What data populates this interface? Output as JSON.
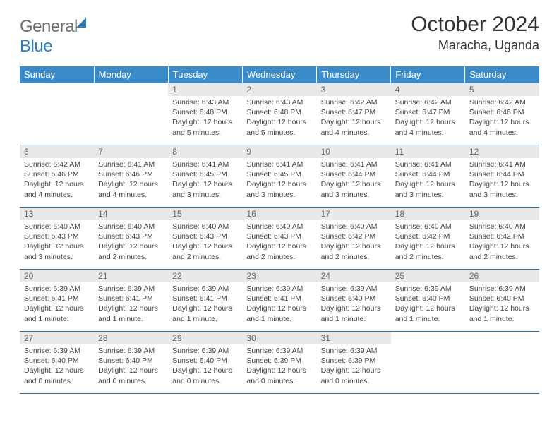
{
  "logo": {
    "part1": "General",
    "part2": "Blue"
  },
  "title": "October 2024",
  "location": "Maracha, Uganda",
  "dayNames": [
    "Sunday",
    "Monday",
    "Tuesday",
    "Wednesday",
    "Thursday",
    "Friday",
    "Saturday"
  ],
  "colors": {
    "header_bg": "#3b8bc9",
    "header_text": "#ffffff",
    "daynum_bg": "#e9e9e9",
    "daynum_text": "#666666",
    "rule": "#2b6ca3",
    "text": "#444444"
  },
  "weeks": [
    [
      {
        "day": "",
        "sunrise": "",
        "sunset": "",
        "daylight": ""
      },
      {
        "day": "",
        "sunrise": "",
        "sunset": "",
        "daylight": ""
      },
      {
        "day": "1",
        "sunrise": "Sunrise: 6:43 AM",
        "sunset": "Sunset: 6:48 PM",
        "daylight": "Daylight: 12 hours and 5 minutes."
      },
      {
        "day": "2",
        "sunrise": "Sunrise: 6:43 AM",
        "sunset": "Sunset: 6:48 PM",
        "daylight": "Daylight: 12 hours and 5 minutes."
      },
      {
        "day": "3",
        "sunrise": "Sunrise: 6:42 AM",
        "sunset": "Sunset: 6:47 PM",
        "daylight": "Daylight: 12 hours and 4 minutes."
      },
      {
        "day": "4",
        "sunrise": "Sunrise: 6:42 AM",
        "sunset": "Sunset: 6:47 PM",
        "daylight": "Daylight: 12 hours and 4 minutes."
      },
      {
        "day": "5",
        "sunrise": "Sunrise: 6:42 AM",
        "sunset": "Sunset: 6:46 PM",
        "daylight": "Daylight: 12 hours and 4 minutes."
      }
    ],
    [
      {
        "day": "6",
        "sunrise": "Sunrise: 6:42 AM",
        "sunset": "Sunset: 6:46 PM",
        "daylight": "Daylight: 12 hours and 4 minutes."
      },
      {
        "day": "7",
        "sunrise": "Sunrise: 6:41 AM",
        "sunset": "Sunset: 6:46 PM",
        "daylight": "Daylight: 12 hours and 4 minutes."
      },
      {
        "day": "8",
        "sunrise": "Sunrise: 6:41 AM",
        "sunset": "Sunset: 6:45 PM",
        "daylight": "Daylight: 12 hours and 3 minutes."
      },
      {
        "day": "9",
        "sunrise": "Sunrise: 6:41 AM",
        "sunset": "Sunset: 6:45 PM",
        "daylight": "Daylight: 12 hours and 3 minutes."
      },
      {
        "day": "10",
        "sunrise": "Sunrise: 6:41 AM",
        "sunset": "Sunset: 6:44 PM",
        "daylight": "Daylight: 12 hours and 3 minutes."
      },
      {
        "day": "11",
        "sunrise": "Sunrise: 6:41 AM",
        "sunset": "Sunset: 6:44 PM",
        "daylight": "Daylight: 12 hours and 3 minutes."
      },
      {
        "day": "12",
        "sunrise": "Sunrise: 6:41 AM",
        "sunset": "Sunset: 6:44 PM",
        "daylight": "Daylight: 12 hours and 3 minutes."
      }
    ],
    [
      {
        "day": "13",
        "sunrise": "Sunrise: 6:40 AM",
        "sunset": "Sunset: 6:43 PM",
        "daylight": "Daylight: 12 hours and 3 minutes."
      },
      {
        "day": "14",
        "sunrise": "Sunrise: 6:40 AM",
        "sunset": "Sunset: 6:43 PM",
        "daylight": "Daylight: 12 hours and 2 minutes."
      },
      {
        "day": "15",
        "sunrise": "Sunrise: 6:40 AM",
        "sunset": "Sunset: 6:43 PM",
        "daylight": "Daylight: 12 hours and 2 minutes."
      },
      {
        "day": "16",
        "sunrise": "Sunrise: 6:40 AM",
        "sunset": "Sunset: 6:43 PM",
        "daylight": "Daylight: 12 hours and 2 minutes."
      },
      {
        "day": "17",
        "sunrise": "Sunrise: 6:40 AM",
        "sunset": "Sunset: 6:42 PM",
        "daylight": "Daylight: 12 hours and 2 minutes."
      },
      {
        "day": "18",
        "sunrise": "Sunrise: 6:40 AM",
        "sunset": "Sunset: 6:42 PM",
        "daylight": "Daylight: 12 hours and 2 minutes."
      },
      {
        "day": "19",
        "sunrise": "Sunrise: 6:40 AM",
        "sunset": "Sunset: 6:42 PM",
        "daylight": "Daylight: 12 hours and 2 minutes."
      }
    ],
    [
      {
        "day": "20",
        "sunrise": "Sunrise: 6:39 AM",
        "sunset": "Sunset: 6:41 PM",
        "daylight": "Daylight: 12 hours and 1 minute."
      },
      {
        "day": "21",
        "sunrise": "Sunrise: 6:39 AM",
        "sunset": "Sunset: 6:41 PM",
        "daylight": "Daylight: 12 hours and 1 minute."
      },
      {
        "day": "22",
        "sunrise": "Sunrise: 6:39 AM",
        "sunset": "Sunset: 6:41 PM",
        "daylight": "Daylight: 12 hours and 1 minute."
      },
      {
        "day": "23",
        "sunrise": "Sunrise: 6:39 AM",
        "sunset": "Sunset: 6:41 PM",
        "daylight": "Daylight: 12 hours and 1 minute."
      },
      {
        "day": "24",
        "sunrise": "Sunrise: 6:39 AM",
        "sunset": "Sunset: 6:40 PM",
        "daylight": "Daylight: 12 hours and 1 minute."
      },
      {
        "day": "25",
        "sunrise": "Sunrise: 6:39 AM",
        "sunset": "Sunset: 6:40 PM",
        "daylight": "Daylight: 12 hours and 1 minute."
      },
      {
        "day": "26",
        "sunrise": "Sunrise: 6:39 AM",
        "sunset": "Sunset: 6:40 PM",
        "daylight": "Daylight: 12 hours and 1 minute."
      }
    ],
    [
      {
        "day": "27",
        "sunrise": "Sunrise: 6:39 AM",
        "sunset": "Sunset: 6:40 PM",
        "daylight": "Daylight: 12 hours and 0 minutes."
      },
      {
        "day": "28",
        "sunrise": "Sunrise: 6:39 AM",
        "sunset": "Sunset: 6:40 PM",
        "daylight": "Daylight: 12 hours and 0 minutes."
      },
      {
        "day": "29",
        "sunrise": "Sunrise: 6:39 AM",
        "sunset": "Sunset: 6:40 PM",
        "daylight": "Daylight: 12 hours and 0 minutes."
      },
      {
        "day": "30",
        "sunrise": "Sunrise: 6:39 AM",
        "sunset": "Sunset: 6:39 PM",
        "daylight": "Daylight: 12 hours and 0 minutes."
      },
      {
        "day": "31",
        "sunrise": "Sunrise: 6:39 AM",
        "sunset": "Sunset: 6:39 PM",
        "daylight": "Daylight: 12 hours and 0 minutes."
      },
      {
        "day": "",
        "sunrise": "",
        "sunset": "",
        "daylight": ""
      },
      {
        "day": "",
        "sunrise": "",
        "sunset": "",
        "daylight": ""
      }
    ]
  ]
}
